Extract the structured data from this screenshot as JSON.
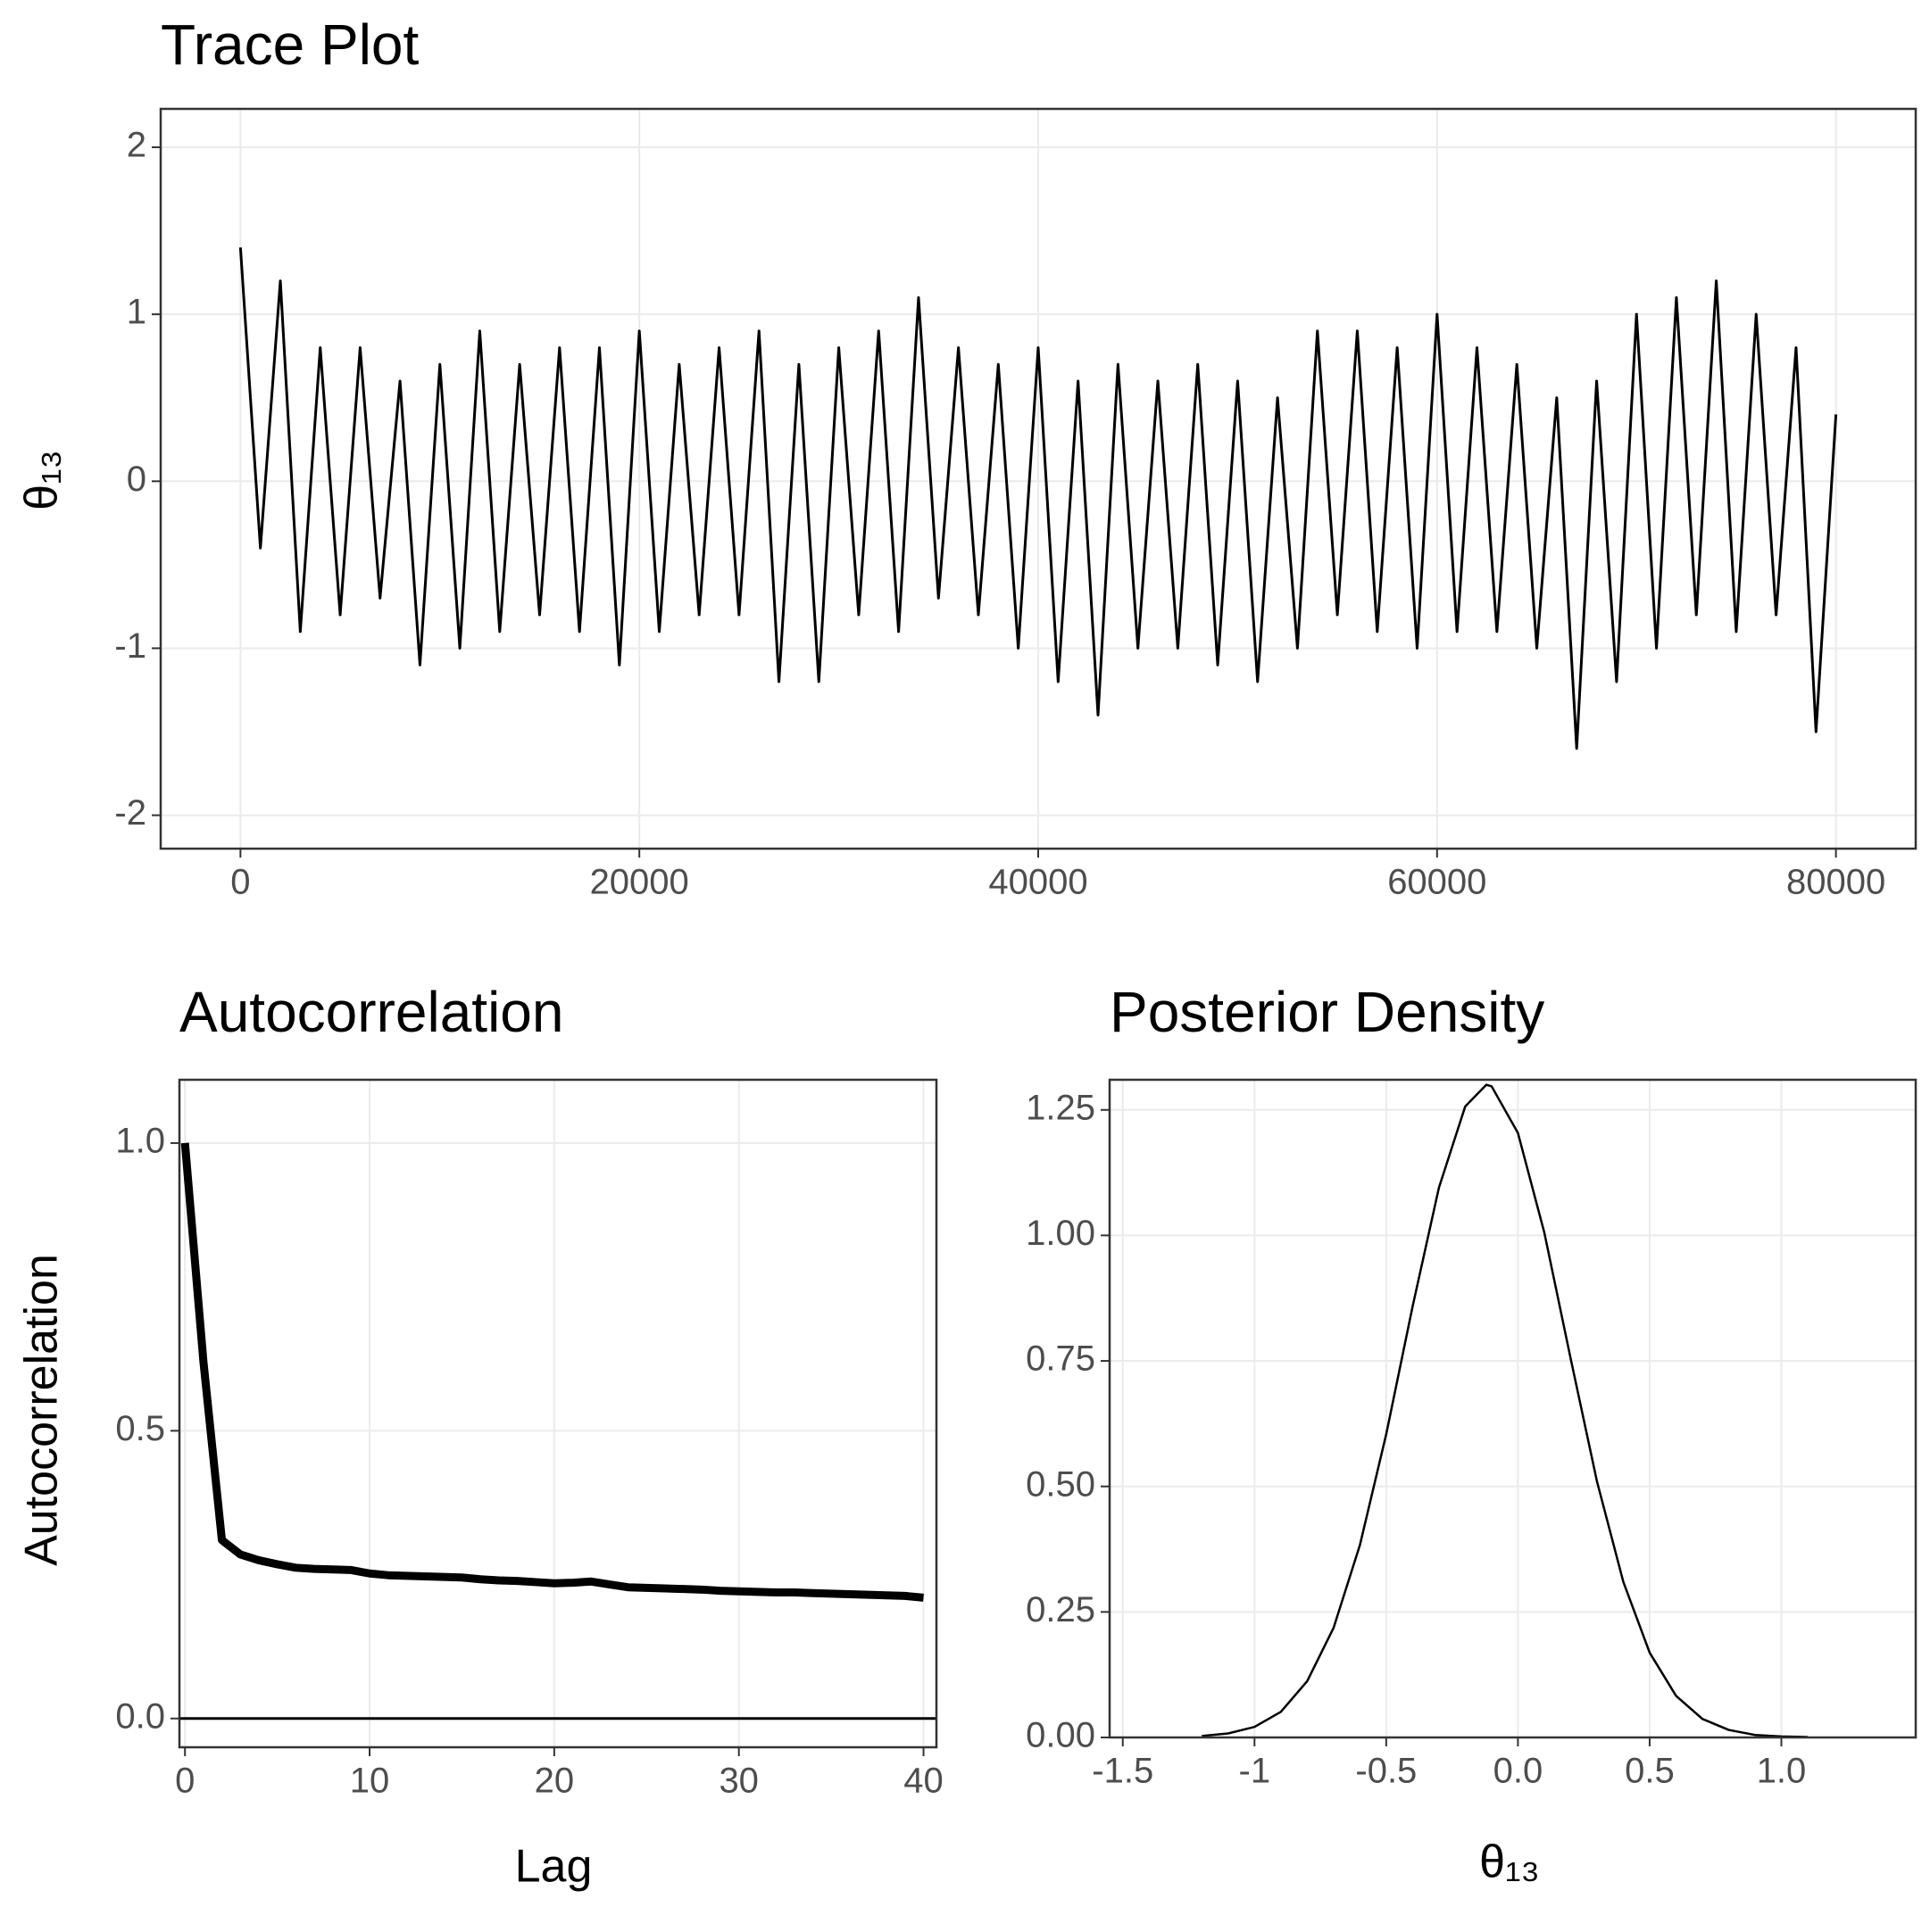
{
  "chart_data": [
    {
      "type": "line",
      "title": "Trace Plot",
      "ylabel": "θ₁₃",
      "color": "#000000",
      "grid": true,
      "x": [
        0,
        1000,
        2000,
        3000,
        4000,
        5000,
        6000,
        7000,
        8000,
        9000,
        10000,
        11000,
        12000,
        13000,
        14000,
        15000,
        16000,
        17000,
        18000,
        19000,
        20000,
        21000,
        22000,
        23000,
        24000,
        25000,
        26000,
        27000,
        28000,
        29000,
        30000,
        31000,
        32000,
        33000,
        34000,
        35000,
        36000,
        37000,
        38000,
        39000,
        40000,
        41000,
        42000,
        43000,
        44000,
        45000,
        46000,
        47000,
        48000,
        49000,
        50000,
        51000,
        52000,
        53000,
        54000,
        55000,
        56000,
        57000,
        58000,
        59000,
        60000,
        61000,
        62000,
        63000,
        64000,
        65000,
        66000,
        67000,
        68000,
        69000,
        70000,
        71000,
        72000,
        73000,
        74000,
        75000,
        76000,
        77000,
        78000,
        79000,
        80000
      ],
      "values": [
        1.4,
        -0.4,
        1.2,
        -0.9,
        0.8,
        -0.8,
        0.8,
        -0.7,
        0.6,
        -1.1,
        0.7,
        -1.0,
        0.9,
        -0.9,
        0.7,
        -0.8,
        0.8,
        -0.9,
        0.8,
        -1.1,
        0.9,
        -0.9,
        0.7,
        -0.8,
        0.8,
        -0.8,
        0.9,
        -1.2,
        0.7,
        -1.2,
        0.8,
        -0.8,
        0.9,
        -0.9,
        1.1,
        -0.7,
        0.8,
        -0.8,
        0.7,
        -1.0,
        0.8,
        -1.2,
        0.6,
        -1.4,
        0.7,
        -1.0,
        0.6,
        -1.0,
        0.7,
        -1.1,
        0.6,
        -1.2,
        0.5,
        -1.0,
        0.9,
        -0.8,
        0.9,
        -0.9,
        0.8,
        -1.0,
        1.0,
        -0.9,
        0.8,
        -0.9,
        0.7,
        -1.0,
        0.5,
        -1.6,
        0.6,
        -1.2,
        1.0,
        -1.0,
        1.1,
        -0.8,
        1.2,
        -0.9,
        1.0,
        -0.8,
        0.8,
        -1.5,
        0.4
      ],
      "xlim": [
        -4000,
        84000
      ],
      "ylim": [
        -2.2,
        2.23
      ],
      "xticks": [
        0,
        20000,
        40000,
        60000,
        80000
      ],
      "yticks": [
        -2,
        -1,
        0,
        1,
        2
      ]
    },
    {
      "type": "line",
      "title": "Autocorrelation",
      "xlabel": "Lag",
      "ylabel": "Autocorrelation",
      "color": "#000000",
      "grid": true,
      "hline": 0,
      "x": [
        0,
        1,
        2,
        3,
        4,
        5,
        6,
        7,
        8,
        9,
        10,
        11,
        12,
        13,
        14,
        15,
        16,
        17,
        18,
        19,
        20,
        21,
        22,
        23,
        24,
        25,
        26,
        27,
        28,
        29,
        30,
        31,
        32,
        33,
        34,
        35,
        36,
        37,
        38,
        39,
        40
      ],
      "values": [
        1.0,
        0.62,
        0.31,
        0.285,
        0.275,
        0.268,
        0.262,
        0.26,
        0.259,
        0.258,
        0.252,
        0.249,
        0.248,
        0.247,
        0.246,
        0.245,
        0.242,
        0.24,
        0.239,
        0.237,
        0.235,
        0.236,
        0.238,
        0.233,
        0.228,
        0.227,
        0.226,
        0.225,
        0.224,
        0.222,
        0.221,
        0.22,
        0.219,
        0.219,
        0.218,
        0.217,
        0.216,
        0.215,
        0.214,
        0.213,
        0.21
      ],
      "xlim": [
        -0.3,
        40.7
      ],
      "ylim": [
        -0.05,
        1.11
      ],
      "xticks": [
        0,
        10,
        20,
        30,
        40
      ],
      "yticks": [
        {
          "value": 0,
          "label": "0.0"
        },
        0.5,
        {
          "value": 1,
          "label": "1.0"
        }
      ]
    },
    {
      "type": "line",
      "title": "Posterior Density",
      "xlabel": "θ₁₃",
      "color": "#000000",
      "grid": true,
      "x": [
        -1.2,
        -1.1,
        -1.0,
        -0.9,
        -0.8,
        -0.7,
        -0.6,
        -0.5,
        -0.4,
        -0.3,
        -0.2,
        -0.12,
        -0.1,
        0,
        0.1,
        0.2,
        0.3,
        0.4,
        0.5,
        0.6,
        0.7,
        0.8,
        0.9,
        1.0,
        1.1
      ],
      "values": [
        0.003,
        0.008,
        0.021,
        0.051,
        0.112,
        0.218,
        0.383,
        0.604,
        0.858,
        1.095,
        1.257,
        1.3,
        1.297,
        1.204,
        1.006,
        0.755,
        0.51,
        0.31,
        0.169,
        0.083,
        0.037,
        0.015,
        0.005,
        0.002,
        0.001
      ],
      "xlim": [
        -1.55,
        1.51
      ],
      "ylim": [
        0,
        1.31
      ],
      "xticks": [
        -1.5,
        -1,
        -0.5,
        {
          "value": 0,
          "label": "0.0"
        },
        0.5,
        {
          "value": 1,
          "label": "1.0"
        }
      ],
      "yticks": [
        {
          "value": 0,
          "label": "0.00"
        },
        0.25,
        {
          "value": 0.5,
          "label": "0.50"
        },
        {
          "value": 0.75,
          "label": "0.75"
        },
        {
          "value": 1,
          "label": "1.00"
        },
        1.25
      ]
    }
  ]
}
